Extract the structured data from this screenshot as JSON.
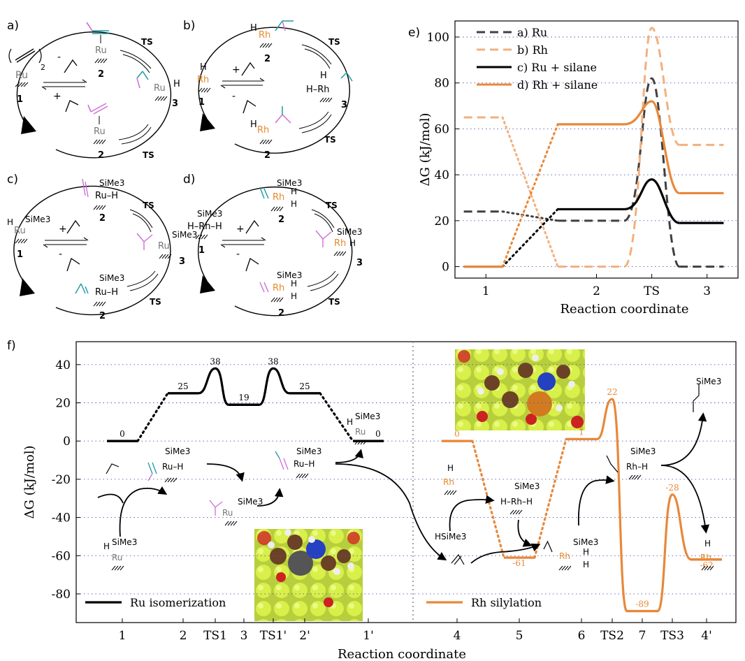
{
  "colors": {
    "ru": "#000000",
    "ru_dash": "#404040",
    "rh": "#e8883a",
    "rh_light": "#f2b07e",
    "teal": "#1b9aa0",
    "magenta": "#cc6fd6",
    "grid": "#5656b8",
    "ru_atom": "#8a8a8a",
    "rh_atom": "#e58a2b"
  },
  "panels": {
    "a": {
      "letter": "a)",
      "cat1": "Ru",
      "cat1_sub": "2",
      "ru": "Ru",
      "num1": "1",
      "num2a": "2",
      "num2b": "2",
      "num3": "3",
      "ts_top": "TS",
      "ts_bottom": "TS",
      "minus": "-",
      "plus": "+",
      "h": "H"
    },
    "b": {
      "letter": "b)",
      "rh": "Rh",
      "h": "H",
      "hrh": "H–Rh",
      "num1": "1",
      "num2a": "2",
      "num2b": "2",
      "num3": "3",
      "ts_top": "TS",
      "ts_bottom": "TS",
      "minus": "-",
      "plus": "+"
    },
    "c": {
      "letter": "c)",
      "ru": "Ru",
      "h": "H",
      "sime3": "SiMe3",
      "ru_h": "Ru–H",
      "num1": "1",
      "num2a": "2",
      "num2b": "2",
      "num3": "3",
      "ts_top": "TS",
      "ts_bottom": "TS",
      "minus": "-",
      "plus": "+"
    },
    "d": {
      "letter": "d)",
      "rh": "Rh",
      "h": "H",
      "sime3": "SiMe3",
      "hrhh": "H–Rh–H",
      "num1": "1",
      "num2a": "2",
      "num2b": "2",
      "num3": "3",
      "ts_top": "TS",
      "ts_bottom": "TS",
      "minus": "-",
      "plus": "+"
    },
    "e": {
      "letter": "e)"
    },
    "f": {
      "letter": "f)",
      "mol_h": "H",
      "mol_sime3": "SiMe3",
      "mol_ru": "Ru",
      "mol_rh": "Rh",
      "mol_ru_h": "Ru–H",
      "mol_hrhh": "H–Rh–H",
      "mol_rh_h": "Rh–H",
      "mol_hsime3": "HSiMe3"
    }
  },
  "chart_data": [
    {
      "type": "line",
      "panel": "e",
      "title": "",
      "xlabel": "Reaction coordinate",
      "ylabel": "ΔG (kJ/mol)",
      "x_ticks": [
        "1",
        "2",
        "TS",
        "3"
      ],
      "x_tick_positions": [
        1,
        2,
        2.5,
        3
      ],
      "ylim": [
        -5,
        107
      ],
      "y_ticks": [
        0,
        20,
        40,
        60,
        80,
        100
      ],
      "grid": "horizontal dotted",
      "legend_position": "top-left",
      "series": [
        {
          "name": "a) Ru",
          "style": "dashed",
          "color": "#404040",
          "x": [
            0.8,
            1.15,
            1.65,
            2.25,
            2.5,
            2.75,
            3.15
          ],
          "y": [
            24,
            24,
            20,
            20,
            82,
            0,
            0
          ]
        },
        {
          "name": "b) Rh",
          "style": "dashed",
          "color": "#f2b07e",
          "x": [
            0.8,
            1.15,
            1.65,
            2.25,
            2.5,
            2.75,
            3.15
          ],
          "y": [
            65,
            65,
            0,
            0,
            104,
            53,
            53
          ]
        },
        {
          "name": "c) Ru + silane",
          "style": "solid",
          "color": "#000000",
          "x": [
            0.8,
            1.15,
            1.65,
            2.25,
            2.5,
            2.75,
            3.15
          ],
          "y": [
            0,
            0,
            25,
            25,
            38,
            19,
            19
          ]
        },
        {
          "name": "d) Rh + silane",
          "style": "solid",
          "color": "#e8883a",
          "x": [
            0.8,
            1.15,
            1.65,
            2.25,
            2.5,
            2.75,
            3.15
          ],
          "y": [
            0,
            0,
            62,
            62,
            72,
            32,
            32
          ]
        }
      ]
    },
    {
      "type": "line",
      "panel": "f",
      "title": "",
      "xlabel": "Reaction coordinate",
      "ylabel": "ΔG (kJ/mol)",
      "x_ticks": [
        "1",
        "2",
        "TS1",
        "3",
        "TS1'",
        "2'",
        "1'",
        "4",
        "5",
        "6",
        "TS2",
        "7",
        "TS3",
        "4'"
      ],
      "ylim": [
        -95,
        52
      ],
      "y_ticks": [
        -80,
        -60,
        -40,
        -20,
        0,
        20,
        40
      ],
      "grid": "horizontal dotted",
      "divider": "vertical dotted between 1' and 4",
      "series": [
        {
          "name": "Ru isomerization",
          "color": "#000000",
          "levels": [
            {
              "x": "1",
              "y": 0,
              "label": "0"
            },
            {
              "x": "2",
              "y": 25,
              "label": "25"
            },
            {
              "x": "TS1",
              "y": 38,
              "label": "38"
            },
            {
              "x": "3",
              "y": 19,
              "label": "19"
            },
            {
              "x": "TS1'",
              "y": 38,
              "label": "38"
            },
            {
              "x": "2'",
              "y": 25,
              "label": "25"
            },
            {
              "x": "1'",
              "y": 0,
              "label": "0"
            }
          ]
        },
        {
          "name": "Rh silylation",
          "color": "#e8883a",
          "levels": [
            {
              "x": "4",
              "y": 0,
              "label": "0"
            },
            {
              "x": "5",
              "y": -61,
              "label": "-61"
            },
            {
              "x": "6",
              "y": 1,
              "label": "1"
            },
            {
              "x": "TS2",
              "y": 22,
              "label": "22"
            },
            {
              "x": "7",
              "y": -89,
              "label": "-89"
            },
            {
              "x": "TS3",
              "y": -28,
              "label": "-28"
            },
            {
              "x": "4'",
              "y": -62,
              "label": "-62"
            }
          ]
        }
      ]
    }
  ]
}
